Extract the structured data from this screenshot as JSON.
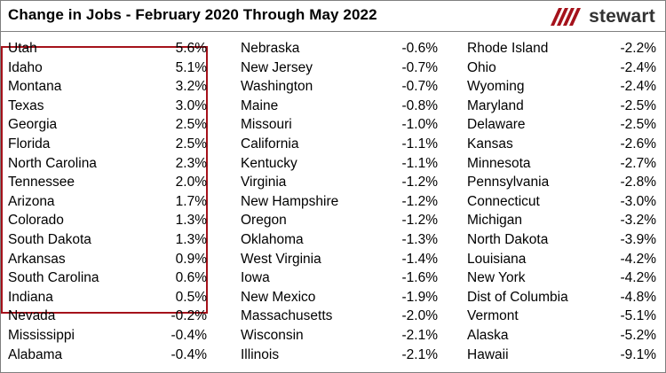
{
  "title": "Change in Jobs  - February 2020 Through May 2022",
  "logo": {
    "text": "stewart",
    "color": "#a5121b"
  },
  "highlight_color": "#a5121b",
  "columns": [
    [
      {
        "state": "Utah",
        "change": "5.6%"
      },
      {
        "state": "Idaho",
        "change": "5.1%"
      },
      {
        "state": "Montana",
        "change": "3.2%"
      },
      {
        "state": "Texas",
        "change": "3.0%"
      },
      {
        "state": "Georgia",
        "change": "2.5%"
      },
      {
        "state": "Florida",
        "change": "2.5%"
      },
      {
        "state": "North Carolina",
        "change": "2.3%"
      },
      {
        "state": "Tennessee",
        "change": "2.0%"
      },
      {
        "state": "Arizona",
        "change": "1.7%"
      },
      {
        "state": "Colorado",
        "change": "1.3%"
      },
      {
        "state": "South Dakota",
        "change": "1.3%"
      },
      {
        "state": "Arkansas",
        "change": "0.9%"
      },
      {
        "state": "South Carolina",
        "change": "0.6%"
      },
      {
        "state": "Indiana",
        "change": "0.5%"
      },
      {
        "state": "Nevada",
        "change": "-0.2%"
      },
      {
        "state": "Mississippi",
        "change": "-0.4%"
      },
      {
        "state": "Alabama",
        "change": "-0.4%"
      }
    ],
    [
      {
        "state": "Nebraska",
        "change": "-0.6%"
      },
      {
        "state": "New Jersey",
        "change": "-0.7%"
      },
      {
        "state": "Washington",
        "change": "-0.7%"
      },
      {
        "state": "Maine",
        "change": "-0.8%"
      },
      {
        "state": "Missouri",
        "change": "-1.0%"
      },
      {
        "state": "California",
        "change": "-1.1%"
      },
      {
        "state": "Kentucky",
        "change": "-1.1%"
      },
      {
        "state": "Virginia",
        "change": "-1.2%"
      },
      {
        "state": "New Hampshire",
        "change": "-1.2%"
      },
      {
        "state": "Oregon",
        "change": "-1.2%"
      },
      {
        "state": "Oklahoma",
        "change": "-1.3%"
      },
      {
        "state": "West Virginia",
        "change": "-1.4%"
      },
      {
        "state": "Iowa",
        "change": "-1.6%"
      },
      {
        "state": "New Mexico",
        "change": "-1.9%"
      },
      {
        "state": "Massachusetts",
        "change": "-2.0%"
      },
      {
        "state": "Wisconsin",
        "change": "-2.1%"
      },
      {
        "state": "Illinois",
        "change": "-2.1%"
      }
    ],
    [
      {
        "state": "Rhode Island",
        "change": "-2.2%"
      },
      {
        "state": "Ohio",
        "change": "-2.4%"
      },
      {
        "state": "Wyoming",
        "change": "-2.4%"
      },
      {
        "state": "Maryland",
        "change": "-2.5%"
      },
      {
        "state": "Delaware",
        "change": "-2.5%"
      },
      {
        "state": "Kansas",
        "change": "-2.6%"
      },
      {
        "state": "Minnesota",
        "change": "-2.7%"
      },
      {
        "state": "Pennsylvania",
        "change": "-2.8%"
      },
      {
        "state": "Connecticut",
        "change": "-3.0%"
      },
      {
        "state": "Michigan",
        "change": "-3.2%"
      },
      {
        "state": "North Dakota",
        "change": "-3.9%"
      },
      {
        "state": "Louisiana",
        "change": "-4.2%"
      },
      {
        "state": "New York",
        "change": "-4.2%"
      },
      {
        "state": "Dist of Columbia",
        "change": "-4.8%"
      },
      {
        "state": "Vermont",
        "change": "-5.1%"
      },
      {
        "state": "Alaska",
        "change": "-5.2%"
      },
      {
        "state": "Hawaii",
        "change": "-9.1%"
      }
    ]
  ]
}
